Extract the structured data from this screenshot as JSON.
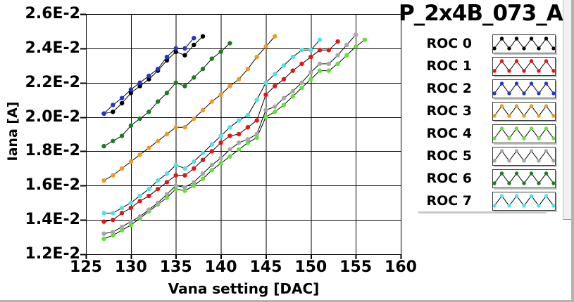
{
  "window": {
    "title": "P_2x4B_073_A"
  },
  "chart_data": {
    "type": "line",
    "title": "P_2x4B_073_A",
    "xlabel": "Vana setting [DAC]",
    "ylabel": "Iana [A]",
    "xlim": [
      125,
      160
    ],
    "x_ticks": [
      125,
      130,
      135,
      140,
      145,
      150,
      155,
      160
    ],
    "ylim_e2": [
      1.2,
      2.6
    ],
    "y_ticks_e2": [
      2.6,
      2.4,
      2.2,
      2.0,
      1.8,
      1.6,
      1.4,
      1.2
    ],
    "y_tick_labels": [
      "2.6E-2",
      "2.4E-2",
      "2.2E-2",
      "2.0E-2",
      "1.8E-2",
      "1.6E-2",
      "1.4E-2",
      "1.2E-2"
    ],
    "grid": true,
    "legend_position": "right",
    "value_unit": "A",
    "value_scale": "values_e2 are in units of 1E-2 ampere",
    "line_color": "#000000",
    "x_step": 1,
    "series": [
      {
        "name": "ROC 0",
        "color": "#000000",
        "x_start": 127,
        "values_e2": [
          2.02,
          2.03,
          2.08,
          2.14,
          2.18,
          2.22,
          2.27,
          2.33,
          2.38,
          2.36,
          2.42,
          2.47
        ]
      },
      {
        "name": "ROC 1",
        "color": "#ee1111",
        "x_start": 127,
        "values_e2": [
          1.39,
          1.4,
          1.44,
          1.47,
          1.51,
          1.54,
          1.58,
          1.62,
          1.66,
          1.66,
          1.7,
          1.75,
          1.8,
          1.85,
          1.89,
          1.9,
          1.94,
          1.98,
          2.13,
          2.18,
          2.22,
          2.27,
          2.31,
          2.35,
          2.39,
          2.39,
          2.44
        ]
      },
      {
        "name": "ROC 2",
        "color": "#2236cf",
        "x_start": 127,
        "values_e2": [
          2.02,
          2.07,
          2.11,
          2.16,
          2.2,
          2.24,
          2.28,
          2.35,
          2.4,
          2.4,
          2.46
        ]
      },
      {
        "name": "ROC 3",
        "color": "#f29a1d",
        "x_start": 127,
        "values_e2": [
          1.63,
          1.66,
          1.7,
          1.74,
          1.78,
          1.82,
          1.86,
          1.9,
          1.94,
          1.94,
          1.99,
          2.04,
          2.09,
          2.13,
          2.18,
          2.22,
          2.28,
          2.35,
          2.41,
          2.47
        ]
      },
      {
        "name": "ROC 4",
        "color": "#5ce62e",
        "x_start": 127,
        "values_e2": [
          1.29,
          1.31,
          1.34,
          1.37,
          1.41,
          1.45,
          1.49,
          1.53,
          1.58,
          1.57,
          1.6,
          1.64,
          1.69,
          1.73,
          1.77,
          1.81,
          1.85,
          1.88,
          2.0,
          2.03,
          2.07,
          2.12,
          2.17,
          2.22,
          2.27,
          2.27,
          2.31,
          2.36,
          2.41,
          2.45
        ]
      },
      {
        "name": "ROC 5",
        "color": "#a8a8a8",
        "x_start": 127,
        "values_e2": [
          1.32,
          1.33,
          1.36,
          1.39,
          1.42,
          1.46,
          1.5,
          1.55,
          1.6,
          1.59,
          1.62,
          1.67,
          1.72,
          1.76,
          1.81,
          1.85,
          1.87,
          1.9,
          2.04,
          2.06,
          2.11,
          2.15,
          2.2,
          2.26,
          2.31,
          2.31,
          2.36,
          2.42,
          2.48
        ]
      },
      {
        "name": "ROC 6",
        "color": "#15801e",
        "x_start": 127,
        "values_e2": [
          1.83,
          1.86,
          1.89,
          1.95,
          1.99,
          2.03,
          2.09,
          2.14,
          2.2,
          2.18,
          2.23,
          2.28,
          2.34,
          2.38,
          2.43
        ]
      },
      {
        "name": "ROC 7",
        "color": "#44e8e8",
        "x_start": 127,
        "values_e2": [
          1.44,
          1.44,
          1.47,
          1.5,
          1.54,
          1.58,
          1.63,
          1.67,
          1.72,
          1.7,
          1.74,
          1.79,
          1.84,
          1.89,
          1.94,
          1.98,
          2.01,
          2.1,
          2.2,
          2.25,
          2.3,
          2.35,
          2.39,
          2.39,
          2.45
        ]
      }
    ]
  }
}
